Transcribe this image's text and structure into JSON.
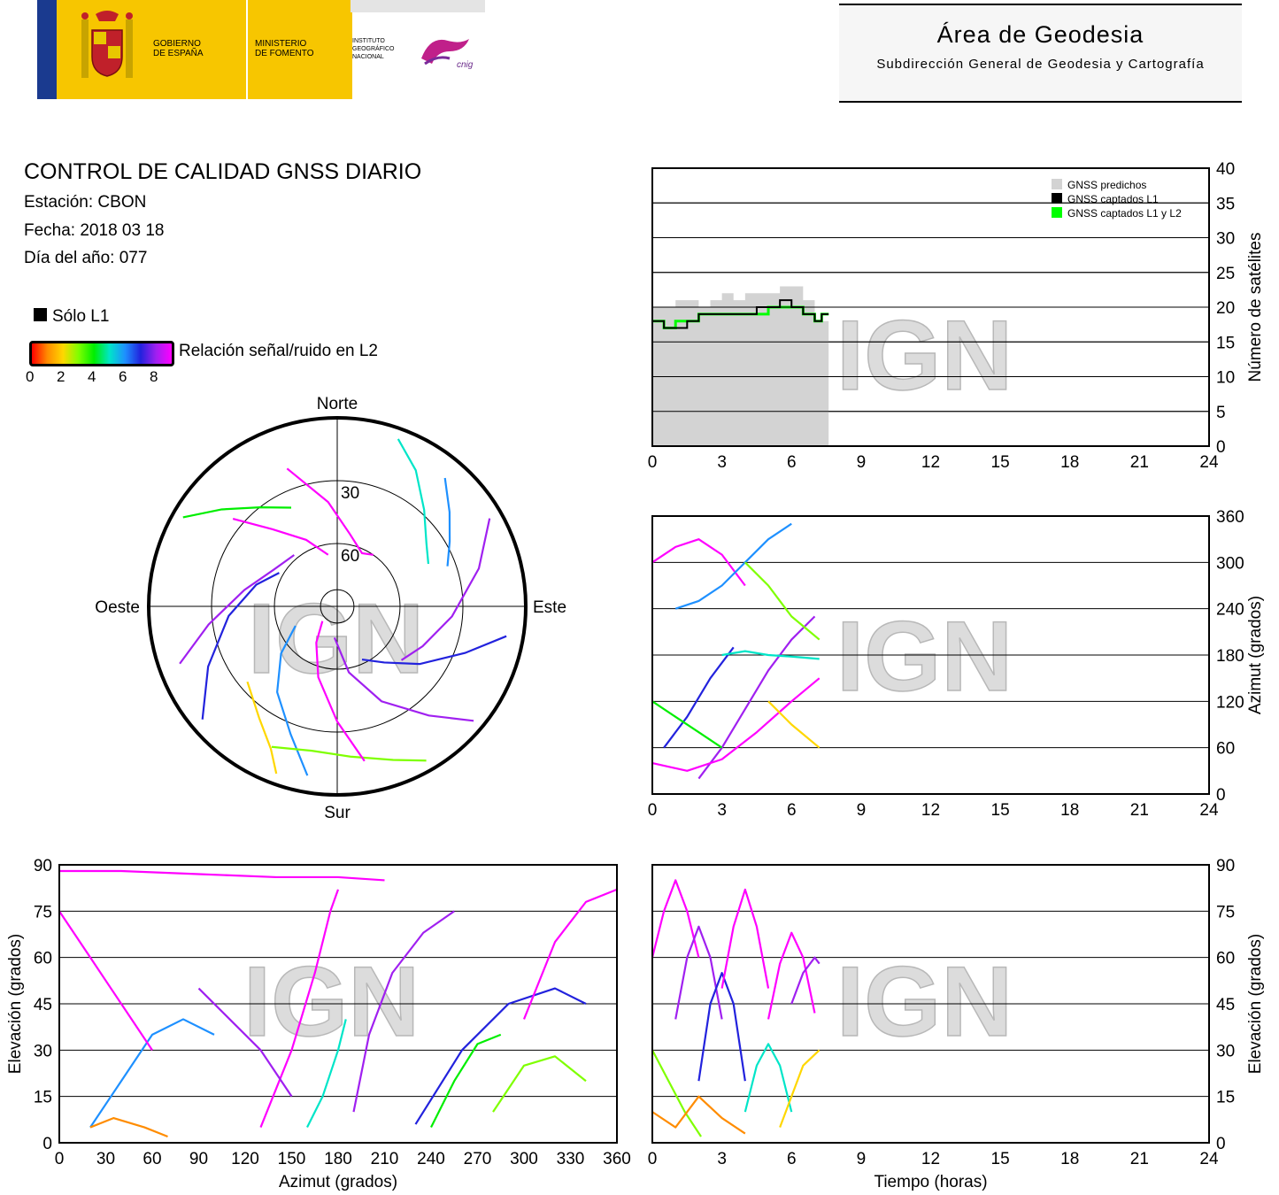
{
  "header": {
    "left": {
      "gov_line1": "GOBIERNO",
      "gov_line2": "DE ESPAÑA",
      "min_line1": "MINISTERIO",
      "min_line2": "DE FOMENTO",
      "ign_line1": "INSTITUTO",
      "ign_line2": "GEOGRÁFICO",
      "ign_line3": "NACIONAL",
      "cnig": "cnig"
    },
    "title": "Área de Geodesia",
    "subtitle": "Subdirección General de Geodesia y Cartografía"
  },
  "info": {
    "title": "CONTROL DE CALIDAD GNSS DIARIO",
    "station": "Estación: CBON",
    "date": "Fecha: 2018 03 18",
    "doy": "Día del año: 077"
  },
  "legend": {
    "solo_l1": "Sólo L1",
    "snr_label": "Relación señal/ruido en L2",
    "snr_ticks": [
      "0",
      "2",
      "4",
      "6",
      "8"
    ]
  },
  "colors": {
    "predicted": "#d3d3d3",
    "l1": "#000000",
    "l1l2": "#00ff00",
    "grid": "#000000",
    "watermark": "#dcdcdc"
  },
  "watermark": "IGN",
  "chart_data": [
    {
      "id": "sat-count",
      "type": "area",
      "xlim": [
        0,
        24
      ],
      "ylim": [
        0,
        40
      ],
      "xticks": [
        "0",
        "3",
        "6",
        "9",
        "12",
        "15",
        "18",
        "21",
        "24"
      ],
      "yticks": [
        "0",
        "5",
        "10",
        "15",
        "20",
        "25",
        "30",
        "35",
        "40"
      ],
      "ylabel": "Número de satélites",
      "legend": [
        "GNSS predichos",
        "GNSS captados L1",
        "GNSS captados L1 y L2"
      ],
      "legend_position": "top-right",
      "grid": true,
      "series": [
        {
          "name": "GNSS predichos",
          "x": [
            0,
            0.5,
            1,
            1.5,
            2,
            2.5,
            3,
            3.5,
            4,
            4.5,
            5,
            5.5,
            6,
            6.5,
            7,
            7.3
          ],
          "values": [
            20,
            20,
            21,
            21,
            20,
            21,
            22,
            21,
            22,
            22,
            22,
            23,
            23,
            21,
            18,
            18
          ]
        },
        {
          "name": "GNSS captados L1",
          "x": [
            0,
            0.5,
            1,
            1.5,
            2,
            2.5,
            3,
            3.5,
            4,
            4.5,
            5,
            5.5,
            6,
            6.5,
            7,
            7.3
          ],
          "values": [
            18,
            17,
            17,
            18,
            19,
            19,
            19,
            19,
            19,
            20,
            20,
            21,
            20,
            19,
            18,
            19
          ]
        },
        {
          "name": "GNSS captados L1 y L2",
          "x": [
            0,
            0.5,
            1,
            1.5,
            2,
            2.5,
            3,
            3.5,
            4,
            4.5,
            5,
            5.5,
            6,
            6.5,
            7,
            7.3
          ],
          "values": [
            18,
            17,
            18,
            18,
            19,
            19,
            19,
            19,
            19,
            19,
            20,
            20,
            20,
            19,
            18,
            19
          ]
        }
      ]
    },
    {
      "id": "skyplot",
      "type": "scatter",
      "labels": {
        "north": "Norte",
        "south": "Sur",
        "east": "Este",
        "west": "Oeste",
        "ring30": "30",
        "ring60": "60"
      },
      "tracks": [
        {
          "az": [
            300,
            310,
            322,
            335
          ],
          "el": [
            5,
            18,
            30,
            38
          ],
          "snr": 4
        },
        {
          "az": [
            20,
            30,
            42,
            55,
            65
          ],
          "el": [
            5,
            15,
            28,
            38,
            42
          ],
          "snr": 5
        },
        {
          "az": [
            190,
            200,
            215,
            230,
            245
          ],
          "el": [
            8,
            25,
            40,
            55,
            68
          ],
          "snr": 6
        },
        {
          "az": [
            130,
            140,
            155,
            170,
            185
          ],
          "el": [
            5,
            22,
            40,
            58,
            75
          ],
          "snr": 8
        },
        {
          "az": [
            230,
            245,
            265,
            285,
            300
          ],
          "el": [
            6,
            22,
            38,
            50,
            58
          ],
          "snr": 7
        },
        {
          "az": [
            60,
            75,
            95,
            115,
            130
          ],
          "el": [
            6,
            20,
            35,
            45,
            50
          ],
          "snr": 8
        },
        {
          "az": [
            340,
            355,
            10,
            25,
            35
          ],
          "el": [
            20,
            40,
            55,
            62,
            60
          ],
          "snr": 9
        },
        {
          "az": [
            150,
            160,
            175,
            190,
            205
          ],
          "el": [
            5,
            12,
            18,
            20,
            16
          ],
          "snr": 3
        },
        {
          "az": [
            310,
            320,
            335,
            350
          ],
          "el": [
            25,
            42,
            55,
            65
          ],
          "snr": 9
        },
        {
          "az": [
            100,
            110,
            125,
            140,
            155
          ],
          "el": [
            8,
            25,
            42,
            55,
            62
          ],
          "snr": 7
        },
        {
          "az": [
            250,
            262,
            280,
            300,
            320
          ],
          "el": [
            10,
            28,
            45,
            55,
            58
          ],
          "snr": 8
        },
        {
          "az": [
            200,
            205,
            215,
            230
          ],
          "el": [
            5,
            15,
            25,
            34
          ],
          "snr": 2
        },
        {
          "az": [
            40,
            50,
            60,
            70
          ],
          "el": [
            10,
            20,
            28,
            34
          ],
          "snr": 6
        },
        {
          "az": [
            170,
            180,
            195,
            210,
            225
          ],
          "el": [
            15,
            35,
            55,
            70,
            80
          ],
          "snr": 9
        }
      ]
    },
    {
      "id": "azimuth-time",
      "type": "scatter",
      "xlim": [
        0,
        24
      ],
      "ylim": [
        0,
        360
      ],
      "xticks": [
        "0",
        "3",
        "6",
        "9",
        "12",
        "15",
        "18",
        "21",
        "24"
      ],
      "yticks": [
        "0",
        "60",
        "120",
        "180",
        "240",
        "300",
        "360"
      ],
      "ylabel": "Azimut (grados)",
      "grid": true,
      "tracks": [
        {
          "t": [
            0,
            1,
            2,
            3,
            4
          ],
          "v": [
            300,
            320,
            330,
            310,
            270
          ],
          "snr": 9
        },
        {
          "t": [
            0.5,
            1.5,
            2.5,
            3.5
          ],
          "v": [
            60,
            100,
            150,
            190
          ],
          "snr": 7
        },
        {
          "t": [
            1,
            2,
            3,
            4,
            5,
            6
          ],
          "v": [
            240,
            250,
            270,
            300,
            330,
            350
          ],
          "snr": 6
        },
        {
          "t": [
            2,
            3,
            4,
            5,
            6,
            7
          ],
          "v": [
            20,
            60,
            110,
            160,
            200,
            230
          ],
          "snr": 8
        },
        {
          "t": [
            3,
            4,
            5,
            6,
            7.2
          ],
          "v": [
            180,
            185,
            180,
            178,
            175
          ],
          "snr": 5
        },
        {
          "t": [
            0,
            1,
            2,
            3
          ],
          "v": [
            120,
            100,
            80,
            60
          ],
          "snr": 4
        },
        {
          "t": [
            4,
            5,
            6,
            7.2
          ],
          "v": [
            300,
            270,
            230,
            200
          ],
          "snr": 3
        },
        {
          "t": [
            0,
            1.5,
            3,
            4.5,
            6,
            7.2
          ],
          "v": [
            40,
            30,
            45,
            80,
            120,
            150
          ],
          "snr": 9
        },
        {
          "t": [
            5,
            6,
            7.2
          ],
          "v": [
            120,
            90,
            60
          ],
          "snr": 2
        }
      ]
    },
    {
      "id": "elevation-azimuth",
      "type": "scatter",
      "xlim": [
        0,
        360
      ],
      "ylim": [
        0,
        90
      ],
      "xticks": [
        "0",
        "30",
        "60",
        "90",
        "120",
        "150",
        "180",
        "210",
        "240",
        "270",
        "300",
        "330",
        "360"
      ],
      "yticks": [
        "0",
        "15",
        "30",
        "45",
        "60",
        "75",
        "90"
      ],
      "xlabel": "Azimut (grados)",
      "ylabel": "Elevación (grados)",
      "grid": true,
      "tracks": [
        {
          "az": [
            0,
            40,
            90,
            140,
            180,
            210
          ],
          "el": [
            88,
            88,
            87,
            86,
            86,
            85
          ],
          "snr": 9
        },
        {
          "az": [
            20,
            40,
            60,
            80,
            100
          ],
          "el": [
            5,
            20,
            35,
            40,
            35
          ],
          "snr": 6
        },
        {
          "az": [
            130,
            150,
            165,
            175,
            180
          ],
          "el": [
            5,
            30,
            55,
            75,
            82
          ],
          "snr": 9
        },
        {
          "az": [
            190,
            200,
            215,
            235,
            255
          ],
          "el": [
            10,
            35,
            55,
            68,
            75
          ],
          "snr": 8
        },
        {
          "az": [
            230,
            260,
            290,
            320,
            340
          ],
          "el": [
            6,
            30,
            45,
            50,
            45
          ],
          "snr": 7
        },
        {
          "az": [
            280,
            300,
            320,
            340
          ],
          "el": [
            10,
            25,
            28,
            20
          ],
          "snr": 3
        },
        {
          "az": [
            300,
            320,
            340,
            360
          ],
          "el": [
            40,
            65,
            78,
            82
          ],
          "snr": 9
        },
        {
          "az": [
            0,
            20,
            40,
            60
          ],
          "el": [
            75,
            60,
            45,
            30
          ],
          "snr": 9
        },
        {
          "az": [
            90,
            110,
            130,
            150
          ],
          "el": [
            50,
            40,
            30,
            15
          ],
          "snr": 8
        },
        {
          "az": [
            20,
            35,
            55,
            70
          ],
          "el": [
            5,
            8,
            5,
            2
          ],
          "snr": 1
        },
        {
          "az": [
            160,
            170,
            180,
            185
          ],
          "el": [
            5,
            15,
            30,
            40
          ],
          "snr": 5
        },
        {
          "az": [
            240,
            255,
            270,
            285
          ],
          "el": [
            5,
            20,
            32,
            35
          ],
          "snr": 4
        }
      ]
    },
    {
      "id": "elevation-time",
      "type": "scatter",
      "xlim": [
        0,
        24
      ],
      "ylim": [
        0,
        90
      ],
      "xticks": [
        "0",
        "3",
        "6",
        "9",
        "12",
        "15",
        "18",
        "21",
        "24"
      ],
      "yticks": [
        "0",
        "15",
        "30",
        "45",
        "60",
        "75",
        "90"
      ],
      "xlabel": "Tiempo (horas)",
      "ylabel": "Elevación (grados)",
      "grid": true,
      "tracks": [
        {
          "t": [
            0,
            0.5,
            1,
            1.5,
            2
          ],
          "v": [
            60,
            75,
            85,
            75,
            60
          ],
          "snr": 9
        },
        {
          "t": [
            1,
            1.5,
            2,
            2.5,
            3
          ],
          "v": [
            40,
            60,
            70,
            60,
            40
          ],
          "snr": 8
        },
        {
          "t": [
            2,
            2.5,
            3,
            3.5,
            4
          ],
          "v": [
            20,
            45,
            55,
            45,
            20
          ],
          "snr": 7
        },
        {
          "t": [
            3,
            3.5,
            4,
            4.5,
            5
          ],
          "v": [
            50,
            70,
            82,
            70,
            50
          ],
          "snr": 9
        },
        {
          "t": [
            4,
            4.5,
            5,
            5.5,
            6
          ],
          "v": [
            10,
            25,
            32,
            25,
            10
          ],
          "snr": 5
        },
        {
          "t": [
            5,
            5.5,
            6,
            6.5,
            7
          ],
          "v": [
            40,
            58,
            68,
            60,
            42
          ],
          "snr": 9
        },
        {
          "t": [
            0,
            0.7,
            1.4,
            2.1
          ],
          "v": [
            30,
            20,
            10,
            2
          ],
          "snr": 3
        },
        {
          "t": [
            5.5,
            6,
            6.5,
            7.2
          ],
          "v": [
            5,
            15,
            25,
            30
          ],
          "snr": 2
        },
        {
          "t": [
            0,
            1,
            2,
            3,
            4
          ],
          "v": [
            10,
            5,
            15,
            8,
            3
          ],
          "snr": 1
        },
        {
          "t": [
            6,
            6.5,
            7,
            7.2
          ],
          "v": [
            45,
            55,
            60,
            58
          ],
          "snr": 8
        }
      ]
    }
  ]
}
